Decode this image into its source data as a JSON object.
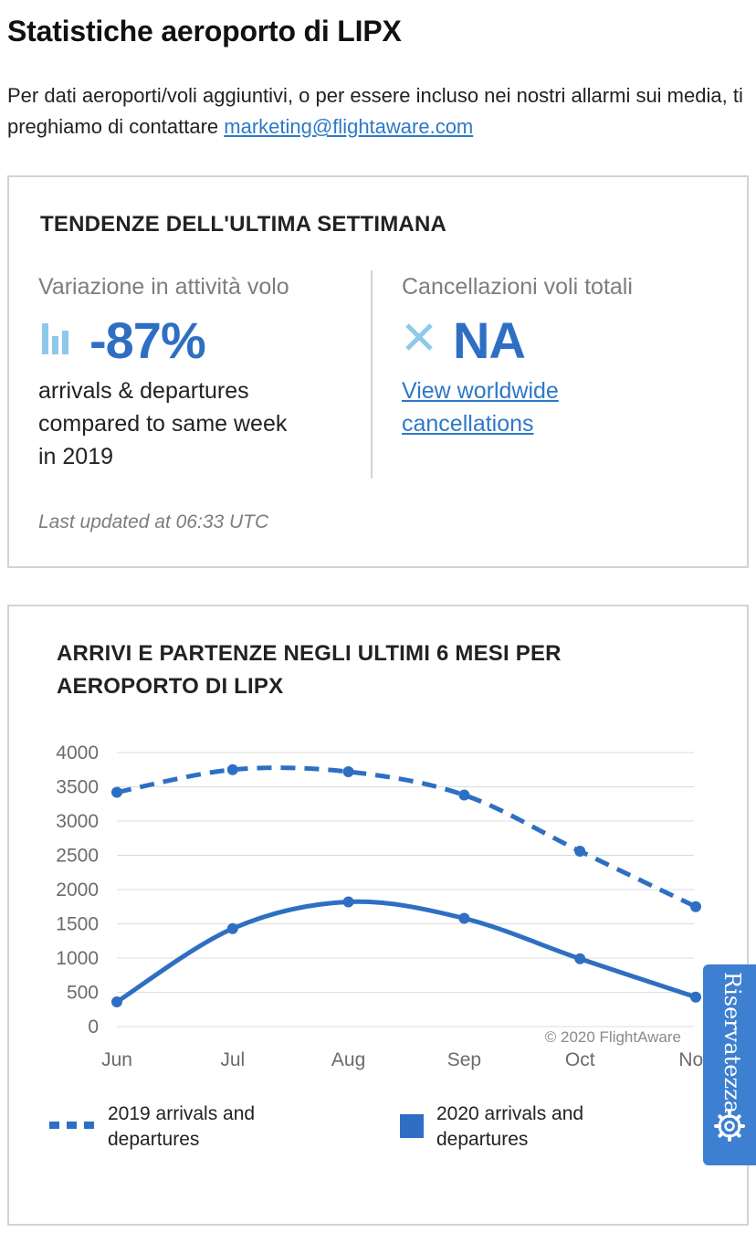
{
  "page": {
    "title": "Statistiche aeroporto di LIPX",
    "intro_text": "Per dati aeroporti/voli aggiuntivi, o per essere incluso nei nostri allarmi sui media, ti preghiamo di contattare ",
    "intro_email": "marketing@flightaware.com"
  },
  "trends": {
    "heading": "TENDENZE DELL'ULTIMA SETTIMANA",
    "activity_label": "Variazione in attività volo",
    "activity_value": "-87%",
    "activity_desc_1": "arrivals & departures",
    "activity_desc_2": "compared to same week",
    "activity_desc_3": "in 2019",
    "cancel_label": "Cancellazioni voli totali",
    "cancel_value": "NA",
    "cancel_link_1": "View worldwide",
    "cancel_link_2": "cancellations",
    "updated": "Last updated at 06:33 UTC",
    "icons": {
      "activity": "bar-chart-icon",
      "cancel": "x-icon"
    },
    "colors": {
      "value": "#2e6fc3",
      "icon": "#8ec8ea"
    }
  },
  "chart_data": {
    "type": "line",
    "title": "ARRIVI E PARTENZE NEGLI ULTIMI 6 MESI PER AEROPORTO DI LIPX",
    "categories": [
      "Jun",
      "Jul",
      "Aug",
      "Sep",
      "Oct",
      "Nov"
    ],
    "ylim": [
      0,
      4000
    ],
    "yticks": [
      0,
      500,
      1000,
      1500,
      2000,
      2500,
      3000,
      3500,
      4000
    ],
    "grid": true,
    "credit": "© 2020 FlightAware",
    "legend_position": "bottom",
    "series": [
      {
        "name": "2019 arrivals and departures",
        "style": "dashed",
        "color": "#2e6fc3",
        "values": [
          3420,
          3750,
          3720,
          3380,
          2560,
          1750
        ]
      },
      {
        "name": "2020 arrivals and departures",
        "style": "solid",
        "color": "#2e6fc3",
        "values": [
          360,
          1430,
          1820,
          1580,
          990,
          430
        ]
      }
    ]
  },
  "legend": {
    "dashed_line_1": "2019 arrivals and",
    "dashed_line_2": "departures",
    "solid_line_1": "2020 arrivals and",
    "solid_line_2": "departures"
  },
  "privacy": {
    "label": "Riservatezza",
    "icon": "gear-icon"
  }
}
